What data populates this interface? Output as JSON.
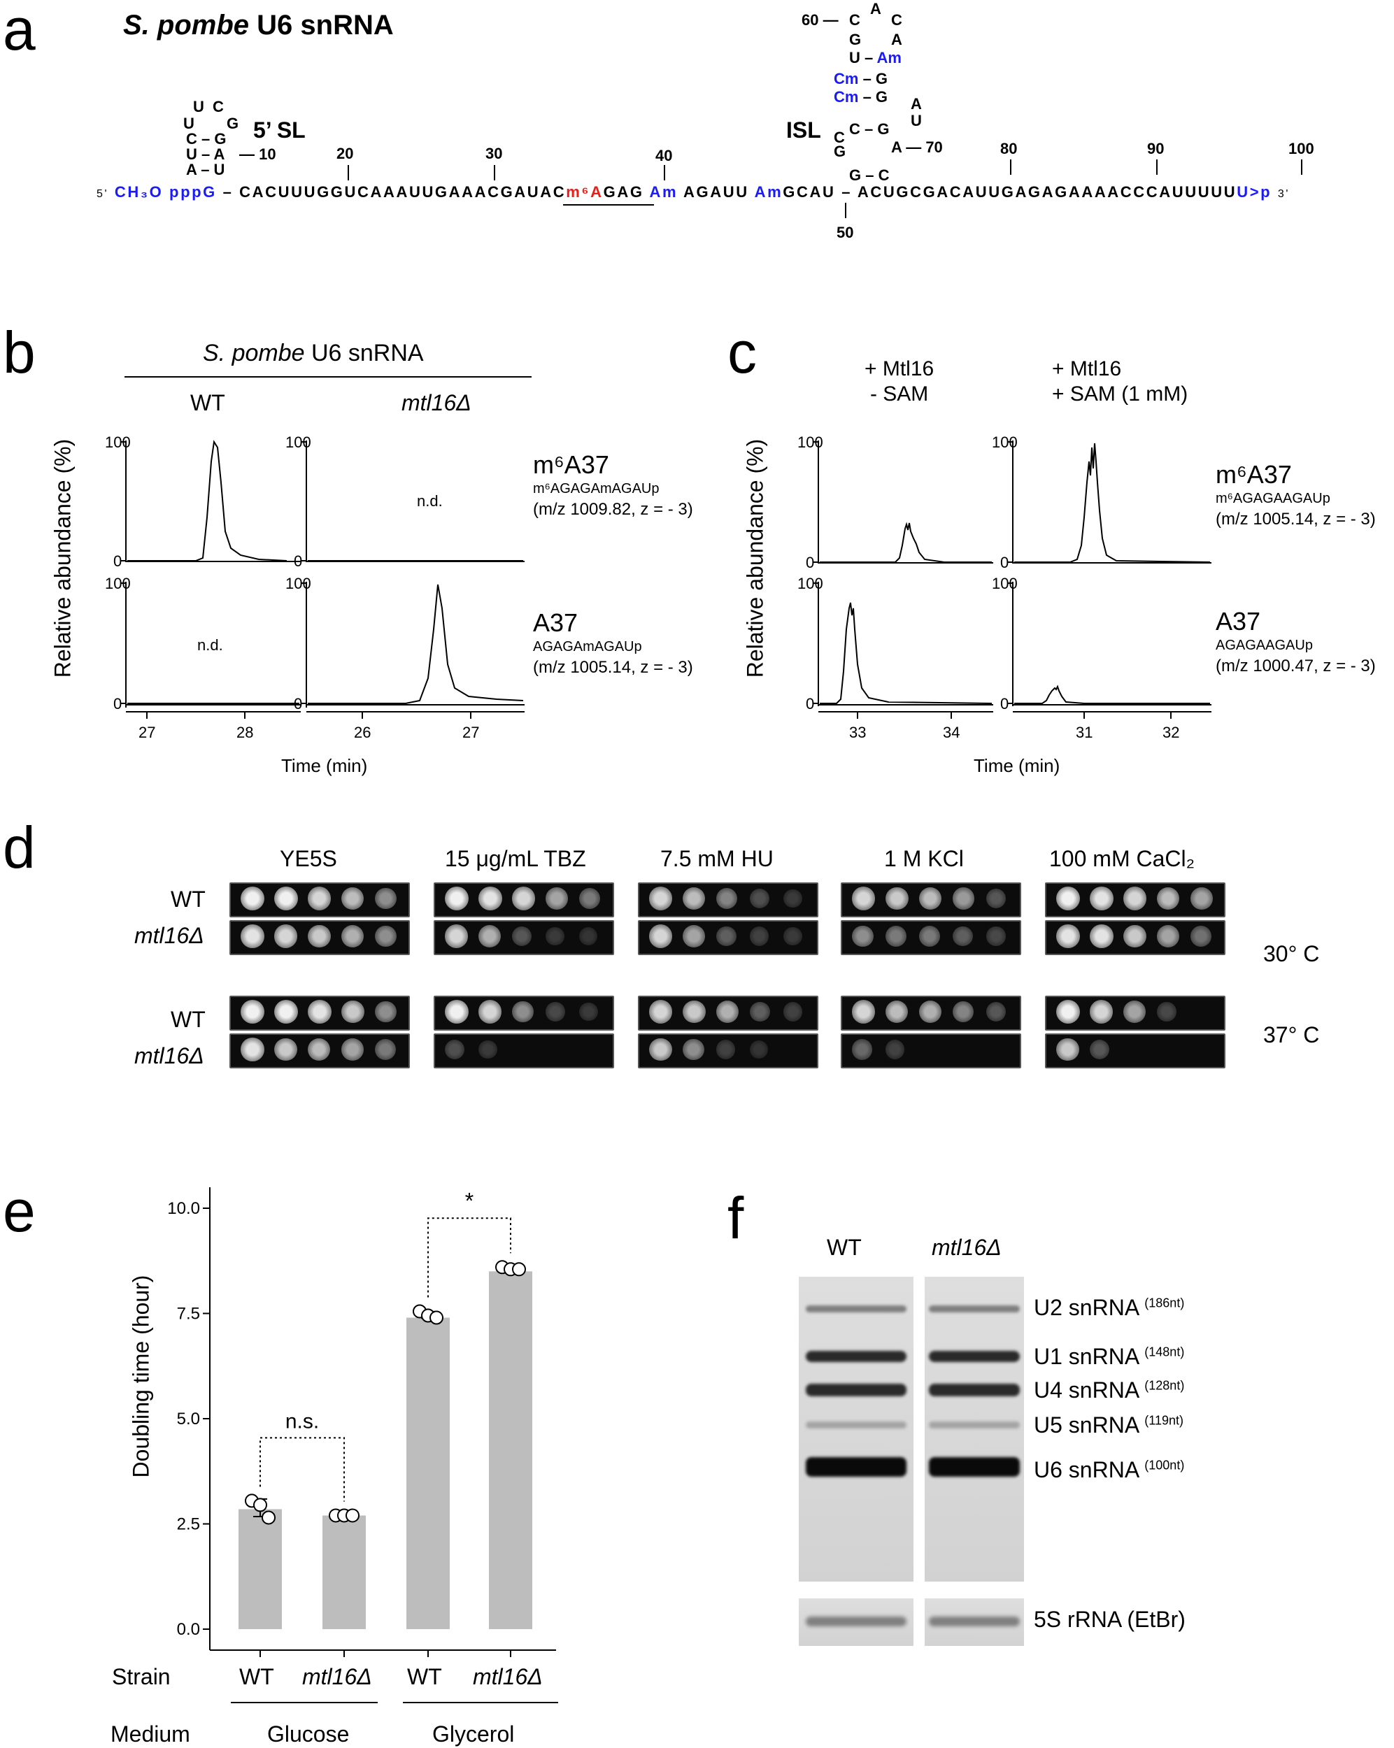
{
  "panel_labels": [
    "a",
    "b",
    "c",
    "d",
    "e",
    "f"
  ],
  "panel_a": {
    "title_species": "S. pombe",
    "title_rest": " U6 snRNA",
    "five_prime": "5'",
    "cap": "CH₃O ppp",
    "first_nt": "G",
    "main_seq": "CACUUUGGUCAAAUUGAAACGAUAC",
    "mod_m6a": "m⁶A",
    "seq_after_m6a": "GAG",
    "am1": "Am",
    "seq_mid": "AGAUU",
    "am2": "Am",
    "seq_gcau": "GCAU",
    "seq_3": "ACUGCGACAUUGAGAGAAAACCCAUUUUU",
    "up_end": "U>p",
    "three_prime": "3'",
    "sl5_label": "5’ SL",
    "isl_label": "ISL",
    "numbers": [
      "10",
      "20",
      "30",
      "40",
      "50",
      "60",
      "70",
      "80",
      "90",
      "100"
    ],
    "stem_5sl": [
      [
        "A",
        "U"
      ],
      [
        "U",
        "A"
      ],
      [
        "C",
        "G"
      ],
      [
        "U",
        "G"
      ]
    ],
    "loop_5sl": [
      "U",
      "C"
    ],
    "isl_rows": [
      [
        "C",
        "A",
        "C"
      ],
      [
        "G",
        "A"
      ],
      [
        "U",
        "Am"
      ],
      [
        "Cm",
        "G"
      ],
      [
        "Cm",
        "G"
      ],
      [
        "A"
      ],
      [
        "U"
      ],
      [
        "C",
        "G"
      ],
      [
        "A"
      ],
      [
        "G",
        "C"
      ]
    ]
  },
  "panel_b": {
    "header_species": "S. pombe",
    "header_rest": " U6 snRNA",
    "col1": "WT",
    "col2": "mtl16Δ",
    "ylabel": "Relative abundance (%)",
    "xlabel": "Time (min)",
    "nd": "n.d.",
    "label_top_main": "m⁶A37",
    "label_top_sub": "m⁶AGAGAmAGAUp",
    "label_top_mz": "(m/z 1009.82, z = - 3)",
    "label_bot_main": "A37",
    "label_bot_sub": "AGAGAmAGAUp",
    "label_bot_mz": "(m/z 1005.14, z = - 3)",
    "ticks_left": [
      "27",
      "28"
    ],
    "ticks_right": [
      "26",
      "27"
    ],
    "y_ticks": [
      "0",
      "100"
    ]
  },
  "panel_c": {
    "col1_l1": "+ Mtl16",
    "col1_l2": "- SAM",
    "col2_l1": "+ Mtl16",
    "col2_l2": "+ SAM (1 mM)",
    "ylabel": "Relative abundance (%)",
    "xlabel": "Time (min)",
    "label_top_main": "m⁶A37",
    "label_top_sub": "m⁶AGAGAAGAUp",
    "label_top_mz": "(m/z 1005.14, z = - 3)",
    "label_bot_main": "A37",
    "label_bot_sub": "AGAGAAGAUp",
    "label_bot_mz": "(m/z 1000.47, z = - 3)",
    "ticks_left": [
      "33",
      "34"
    ],
    "ticks_right": [
      "31",
      "32"
    ],
    "y_ticks": [
      "0",
      "100"
    ]
  },
  "panel_d": {
    "conditions": [
      "YE5S",
      "15 μg/mL TBZ",
      "7.5 mM HU",
      "1 M KCl",
      "100 mM CaCl₂"
    ],
    "rows": [
      "WT",
      "mtl16Δ",
      "WT",
      "mtl16Δ"
    ],
    "temp1": "30° C",
    "temp2": "37° C"
  },
  "chart_data": {
    "type": "bar",
    "ylabel": "Doubling time (hour)",
    "ylim": [
      0,
      10
    ],
    "y_ticks": [
      "0.0",
      "2.5",
      "5.0",
      "7.5",
      "10.0"
    ],
    "categories": [
      "WT",
      "mtl16Δ",
      "WT",
      "mtl16Δ"
    ],
    "media": [
      "Glucose",
      "Glycerol"
    ],
    "strain_label": "Strain",
    "medium_label": "Medium",
    "values": [
      2.85,
      2.7,
      7.4,
      8.5
    ],
    "points": [
      [
        3.05,
        2.95,
        2.65
      ],
      [
        2.7,
        2.7,
        2.7
      ],
      [
        7.55,
        7.45,
        7.4
      ],
      [
        8.6,
        8.55,
        8.55
      ]
    ],
    "sig": [
      {
        "pair": [
          0,
          1
        ],
        "label": "n.s."
      },
      {
        "pair": [
          2,
          3
        ],
        "label": "*"
      }
    ]
  },
  "panel_f": {
    "col1": "WT",
    "col2": "mtl16Δ",
    "bands": [
      {
        "name": "U2 snRNA",
        "size": "(186nt)"
      },
      {
        "name": "U1 snRNA",
        "size": "(148nt)"
      },
      {
        "name": "U4 snRNA",
        "size": "(128nt)"
      },
      {
        "name": "U5 snRNA",
        "size": "(119nt)"
      },
      {
        "name": "U6 snRNA",
        "size": "(100nt)"
      }
    ],
    "loading": "5S rRNA (EtBr)"
  }
}
